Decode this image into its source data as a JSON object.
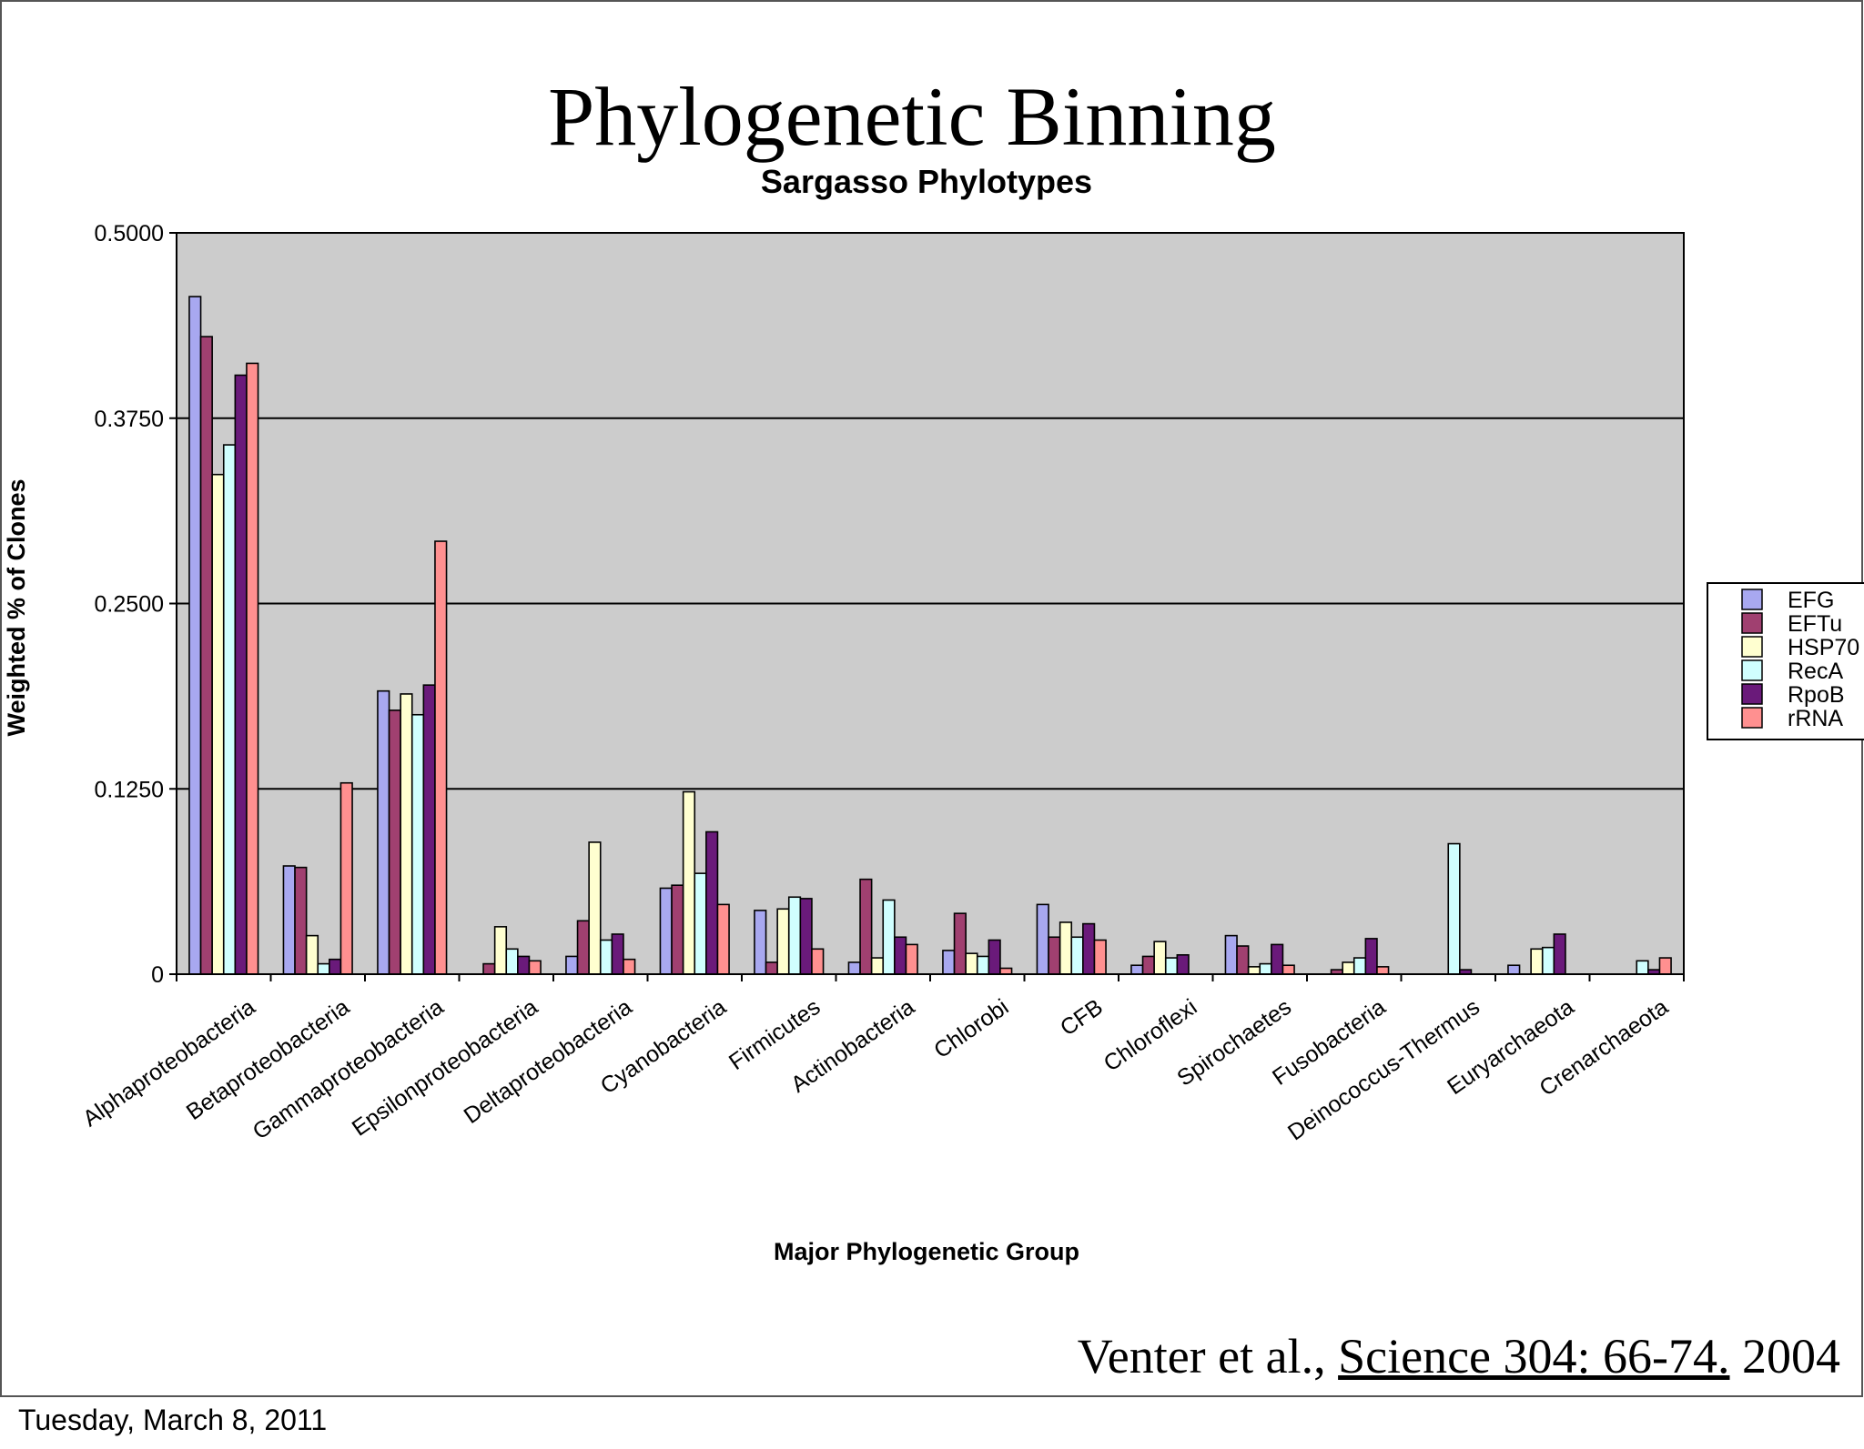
{
  "slide": {
    "title": "Phylogenetic Binning",
    "citation_authors": "Venter et al., ",
    "citation_journal": "Science 304: 66-74.",
    "citation_year": " 2004",
    "footer_date": "Tuesday, March 8, 2011"
  },
  "colors": {
    "plot_background": "#cccccc",
    "gridline": "#000000",
    "bar_outline": "#000000"
  },
  "chart_data": {
    "type": "bar",
    "title": "Sargasso Phylotypes",
    "xlabel": "Major Phylogenetic Group",
    "ylabel": "Weighted % of Clones",
    "ylim": [
      0,
      0.5
    ],
    "yticks": [
      "0",
      "0.1250",
      "0.2500",
      "0.3750",
      "0.5000"
    ],
    "ytick_values": [
      0,
      0.125,
      0.25,
      0.375,
      0.5
    ],
    "grid": true,
    "legend_position": "right",
    "categories": [
      "Alphaproteobacteria",
      "Betaproteobacteria",
      "Gammaproteobacteria",
      "Epsilonproteobacteria",
      "Deltaproteobacteria",
      "Cyanobacteria",
      "Firmicutes",
      "Actinobacteria",
      "Chlorobi",
      "CFB",
      "Chloroflexi",
      "Spirochaetes",
      "Fusobacteria",
      "Deinococcus-Thermus",
      "Euryarchaeota",
      "Crenarchaeota"
    ],
    "series": [
      {
        "name": "EFG",
        "color": "#a8a8f0",
        "values": [
          0.457,
          0.073,
          0.191,
          0,
          0.012,
          0.058,
          0.043,
          0.008,
          0.016,
          0.047,
          0.006,
          0.026,
          0,
          0,
          0.006,
          0
        ]
      },
      {
        "name": "EFTu",
        "color": "#a04070",
        "values": [
          0.43,
          0.072,
          0.178,
          0.007,
          0.036,
          0.06,
          0.008,
          0.064,
          0.041,
          0.025,
          0.012,
          0.019,
          0.003,
          0,
          0,
          0
        ]
      },
      {
        "name": "HSP70",
        "color": "#ffffd0",
        "values": [
          0.337,
          0.026,
          0.189,
          0.032,
          0.089,
          0.123,
          0.044,
          0.011,
          0.014,
          0.035,
          0.022,
          0.005,
          0.008,
          0,
          0.017,
          0
        ]
      },
      {
        "name": "RecA",
        "color": "#d0ffff",
        "values": [
          0.357,
          0.007,
          0.175,
          0.017,
          0.023,
          0.068,
          0.052,
          0.05,
          0.012,
          0.025,
          0.011,
          0.007,
          0.011,
          0.088,
          0.018,
          0.009
        ]
      },
      {
        "name": "RpoB",
        "color": "#6a1a7a",
        "values": [
          0.404,
          0.01,
          0.195,
          0.012,
          0.027,
          0.096,
          0.051,
          0.025,
          0.023,
          0.034,
          0.013,
          0.02,
          0.024,
          0.003,
          0.027,
          0.003
        ]
      },
      {
        "name": "rRNA",
        "color": "#ff9090",
        "values": [
          0.412,
          0.129,
          0.292,
          0.009,
          0.01,
          0.047,
          0.017,
          0.02,
          0.004,
          0.023,
          0,
          0.006,
          0.005,
          0,
          0,
          0.011
        ]
      }
    ]
  }
}
